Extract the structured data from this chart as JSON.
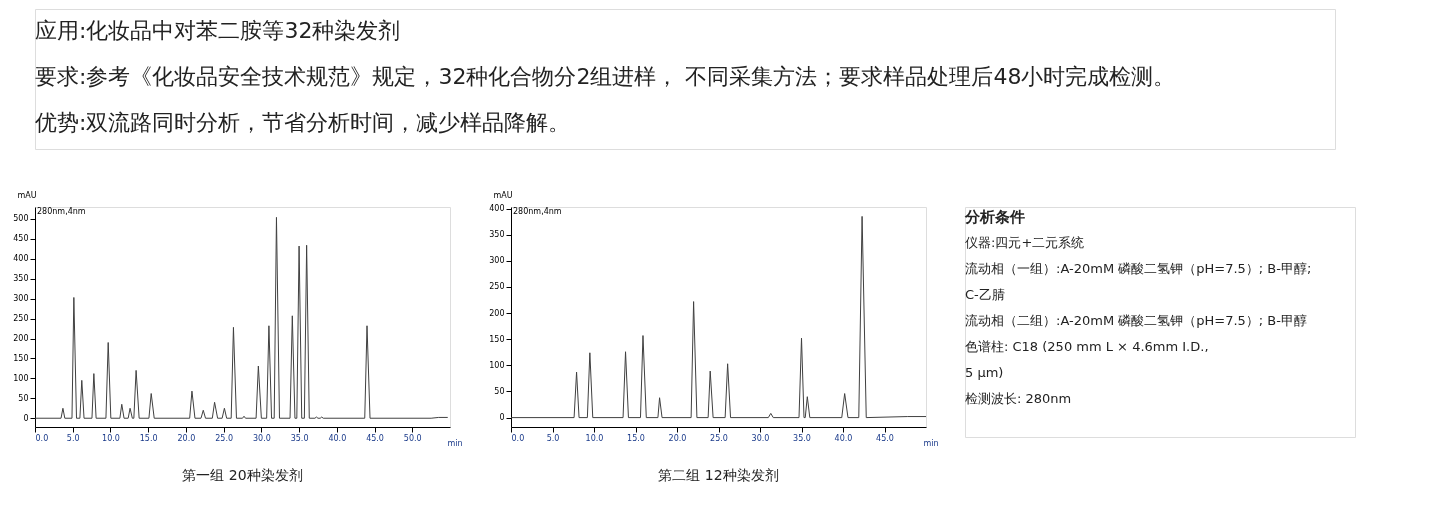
{
  "chart_data": [
    {
      "type": "other",
      "annotations": [
        "应用:化妆品中对苯二胺等32种染发剂",
        "要求:参考《化妆品安全技术规范》规定，32种化合物分2组进样， 不同采集方法；要求样品处理后48小时完成检测。",
        "优势:双流路同时分析，节省分析时间，减少样品降解。"
      ]
    },
    {
      "type": "line",
      "title": "第一组  20种染发剂",
      "xlabel": "min",
      "ylabel": "mAU",
      "annotations": [
        "280nm,4nm"
      ],
      "grid": false,
      "xlim": [
        0,
        55
      ],
      "ylim": [
        -22,
        530
      ],
      "xticks": [
        {
          "value": 0,
          "label": "0.0"
        },
        {
          "value": 5,
          "label": "5.0"
        },
        {
          "value": 10,
          "label": "10.0"
        },
        {
          "value": 15,
          "label": "15.0"
        },
        {
          "value": 20,
          "label": "20.0"
        },
        {
          "value": 25,
          "label": "25.0"
        },
        {
          "value": 30,
          "label": "30.0"
        },
        {
          "value": 35,
          "label": "35.0"
        },
        {
          "value": 40,
          "label": "40.0"
        },
        {
          "value": 45,
          "label": "45.0"
        },
        {
          "value": 50,
          "label": "50.0"
        }
      ],
      "yticks": [
        0,
        50,
        100,
        150,
        200,
        250,
        300,
        350,
        400,
        450,
        500
      ],
      "series": [
        {
          "color": "#404040",
          "x": [
            0,
            3.45,
            3.7,
            3.95,
            4.9,
            5.15,
            5.5,
            5.95,
            6.2,
            6.5,
            7.55,
            7.8,
            8.1,
            9.4,
            9.7,
            10.05,
            11.25,
            11.5,
            11.8,
            12.35,
            12.6,
            12.9,
            13.1,
            13.4,
            13.8,
            15.1,
            15.4,
            15.8,
            20.5,
            20.8,
            21.2,
            22.0,
            22.3,
            22.6,
            23.5,
            23.8,
            24.2,
            24.8,
            25.1,
            25.4,
            26.0,
            26.3,
            26.7,
            27.5,
            27.7,
            27.9,
            29.3,
            29.6,
            30.0,
            30.7,
            31.0,
            31.35,
            31.7,
            32.0,
            32.4,
            33.8,
            34.1,
            34.45,
            34.7,
            35.0,
            35.35,
            35.7,
            36.0,
            36.35,
            37.1,
            37.3,
            37.5,
            37.8,
            38.0,
            38.2,
            43.7,
            44.0,
            44.4,
            52.5,
            53.5,
            54.7
          ],
          "values": [
            0,
            0,
            25,
            0,
            0,
            303,
            0,
            0,
            95,
            0,
            0,
            112,
            0,
            0,
            190,
            0,
            0,
            35,
            0,
            0,
            25,
            0,
            0,
            120,
            0,
            0,
            62,
            0,
            0,
            68,
            0,
            0,
            20,
            0,
            0,
            40,
            0,
            0,
            25,
            0,
            0,
            228,
            0,
            0,
            5,
            0,
            0,
            131,
            0,
            0,
            232,
            0,
            0,
            504,
            0,
            0,
            257,
            0,
            0,
            432,
            0,
            0,
            434,
            0,
            0,
            3,
            0,
            0,
            3,
            0,
            0,
            232,
            0,
            0,
            2,
            2
          ]
        }
      ]
    },
    {
      "type": "line",
      "title": "第二组  12种染发剂",
      "xlabel": "min",
      "ylabel": "mAU",
      "annotations": [
        "280nm,4nm"
      ],
      "grid": false,
      "xlim": [
        0,
        50
      ],
      "ylim": [
        -18,
        403
      ],
      "xticks": [
        {
          "value": 0,
          "label": "0.0"
        },
        {
          "value": 5,
          "label": "5.0"
        },
        {
          "value": 10,
          "label": "10.0"
        },
        {
          "value": 15,
          "label": "15.0"
        },
        {
          "value": 20,
          "label": "20.0"
        },
        {
          "value": 25,
          "label": "25.0"
        },
        {
          "value": 30,
          "label": "30.0"
        },
        {
          "value": 35,
          "label": "35.0"
        },
        {
          "value": 40,
          "label": "40.0"
        },
        {
          "value": 45,
          "label": "45.0"
        }
      ],
      "yticks": [
        0,
        50,
        100,
        150,
        200,
        250,
        300,
        350,
        400
      ],
      "series": [
        {
          "color": "#404040",
          "x": [
            0,
            7.6,
            7.9,
            8.2,
            9.2,
            9.5,
            9.85,
            13.5,
            13.8,
            14.15,
            15.6,
            15.9,
            16.3,
            17.7,
            17.9,
            18.2,
            21.7,
            22.0,
            22.4,
            23.75,
            24.0,
            24.35,
            25.8,
            26.1,
            26.45,
            31.0,
            31.3,
            31.6,
            34.7,
            35.0,
            35.3,
            35.45,
            35.7,
            36.0,
            39.85,
            40.2,
            40.6,
            41.9,
            42.3,
            42.8,
            47.8,
            50.0
          ],
          "values": [
            0,
            0,
            87,
            0,
            0,
            124,
            0,
            0,
            126,
            0,
            0,
            157,
            0,
            0,
            38,
            0,
            0,
            222,
            0,
            0,
            89,
            0,
            0,
            103,
            0,
            0,
            8,
            0,
            0,
            152,
            0,
            0,
            40,
            0,
            0,
            46,
            0,
            0,
            385,
            0,
            2,
            2
          ]
        }
      ]
    },
    {
      "type": "other",
      "title": "分析条件",
      "annotations": [
        "仪器:四元+二元系统",
        "流动相（一组）:A-20mM 磷酸二氢钾（pH=7.5）; B-甲醇;",
        "C-乙腈",
        "流动相（二组）:A-20mM 磷酸二氢钾（pH=7.5）; B-甲醇",
        "色谱柱: C18 (250 mm L × 4.6mm I.D.,",
        "5 μm)",
        "检测波长: 280nm"
      ]
    }
  ]
}
